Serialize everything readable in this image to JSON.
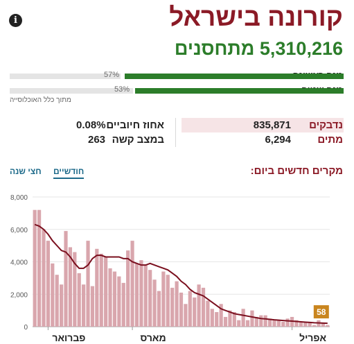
{
  "header": {
    "title": "קורונה בישראל",
    "vaccinated_number": "5,310,216",
    "vaccinated_label": "מתחסנים"
  },
  "doses": [
    {
      "label": "מנה ראשונה",
      "percent": "57%",
      "fraction": 0.57
    },
    {
      "label": "מנה שנייה",
      "percent": "53%",
      "fraction": 0.53
    }
  ],
  "doses_note": "מתוך כלל האוכלוסייה",
  "stats": {
    "infected_label": "נדבקים",
    "infected_value": "835,871",
    "deaths_label": "מתים",
    "deaths_value": "6,294",
    "positive_label": "אחוז חיוביים",
    "positive_value": "0.08%",
    "serious_label": "במצב קשה",
    "serious_value": "263"
  },
  "chart": {
    "title": "מקרים חדשים ביום:",
    "tabs": [
      {
        "label": "חודשיים",
        "active": true
      },
      {
        "label": "חצי שנה",
        "active": false
      }
    ],
    "latest_badge": "58"
  },
  "colors": {
    "title_red": "#8b1a26",
    "vaccine_green": "#2c7d2a",
    "bar_pink": "#d9a6ad",
    "line_red": "#7a0f1e",
    "badge_orange": "#c9851e"
  },
  "chart_data": {
    "type": "bar",
    "ylim": [
      0,
      8000
    ],
    "yticks": [
      "0",
      "2,000",
      "4,000",
      "6,000",
      "8,000"
    ],
    "ytick_values": [
      0,
      2000,
      4000,
      6000,
      8000
    ],
    "month_labels": [
      {
        "label": "פברואר",
        "index": 3
      },
      {
        "label": "מארס",
        "index": 22
      },
      {
        "label": "אפריל",
        "index": 58
      }
    ],
    "values": [
      7200,
      7200,
      6000,
      5300,
      3900,
      3200,
      2600,
      5900,
      4900,
      4600,
      3300,
      2600,
      5300,
      2500,
      4800,
      4500,
      4300,
      3600,
      3400,
      3100,
      2700,
      4700,
      5300,
      3900,
      4100,
      3800,
      3500,
      2900,
      2200,
      3400,
      3200,
      2400,
      2800,
      2100,
      1400,
      2200,
      1800,
      2600,
      2400,
      1600,
      1100,
      900,
      1400,
      600,
      1000,
      900,
      400,
      1100,
      400,
      1000,
      600,
      700,
      700,
      500,
      400,
      400,
      300,
      500,
      600,
      400,
      300,
      300,
      300,
      100,
      400,
      200,
      100
    ],
    "avg": [
      6300,
      6200,
      6000,
      5700,
      5300,
      5000,
      4700,
      4600,
      4300,
      3900,
      3600,
      3600,
      3800,
      4200,
      4400,
      4400,
      4300,
      4300,
      4300,
      4300,
      4200,
      4200,
      4000,
      3900,
      3800,
      3800,
      3900,
      3800,
      3700,
      3600,
      3500,
      3300,
      3100,
      2800,
      2600,
      2300,
      2100,
      2000,
      1900,
      1700,
      1500,
      1300,
      1100,
      1000,
      900,
      800,
      750,
      700,
      650,
      600,
      550,
      500,
      480,
      450,
      420,
      400,
      380,
      360,
      340,
      320,
      300,
      280,
      260,
      240,
      230,
      220,
      210
    ],
    "series": [
      {
        "values_ref": "values",
        "type": "bar"
      },
      {
        "values_ref": "avg",
        "type": "line"
      }
    ]
  }
}
